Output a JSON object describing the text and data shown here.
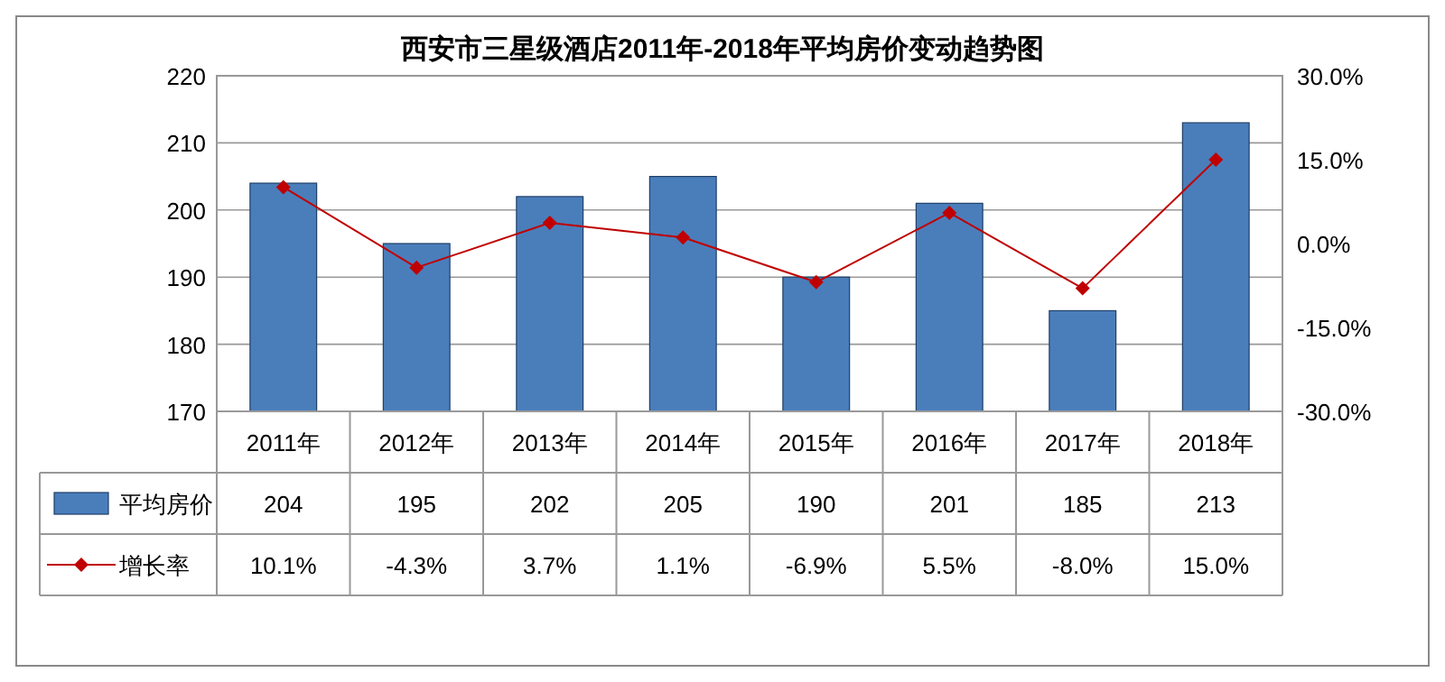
{
  "chart_data": {
    "type": "bar",
    "title": "西安市三星级酒店2011年-2018年平均房价变动趋势图",
    "categories": [
      "2011年",
      "2012年",
      "2013年",
      "2014年",
      "2015年",
      "2016年",
      "2017年",
      "2018年"
    ],
    "series": [
      {
        "name": "平均房价",
        "color": "#4a7ebb",
        "values": [
          204,
          195,
          202,
          205,
          190,
          201,
          185,
          213
        ],
        "value_labels": [
          "204",
          "195",
          "202",
          "205",
          "190",
          "201",
          "185",
          "213"
        ]
      },
      {
        "name": "增长率",
        "type": "line",
        "axis": "y2",
        "color": "#c00000",
        "marker": "diamond",
        "line_style": "solid",
        "values": [
          10.1,
          -4.3,
          3.7,
          1.1,
          -6.9,
          5.5,
          -8.0,
          15.0
        ],
        "value_labels": [
          "10.1%",
          "-4.3%",
          "3.7%",
          "1.1%",
          "-6.9%",
          "5.5%",
          "-8.0%",
          "15.0%"
        ]
      }
    ],
    "ylim": [
      170,
      220
    ],
    "yticks": [
      170,
      180,
      190,
      200,
      210,
      220
    ],
    "y2lim": [
      -30,
      30
    ],
    "y2ticks": [
      {
        "value": -30,
        "label": "-30.0%"
      },
      {
        "value": -15,
        "label": "-15.0%"
      },
      {
        "value": 0,
        "label": "0.0%"
      },
      {
        "value": 15,
        "label": "15.0%"
      },
      {
        "value": 30,
        "label": "30.0%"
      }
    ],
    "grid": "y",
    "legend": "bottom"
  }
}
